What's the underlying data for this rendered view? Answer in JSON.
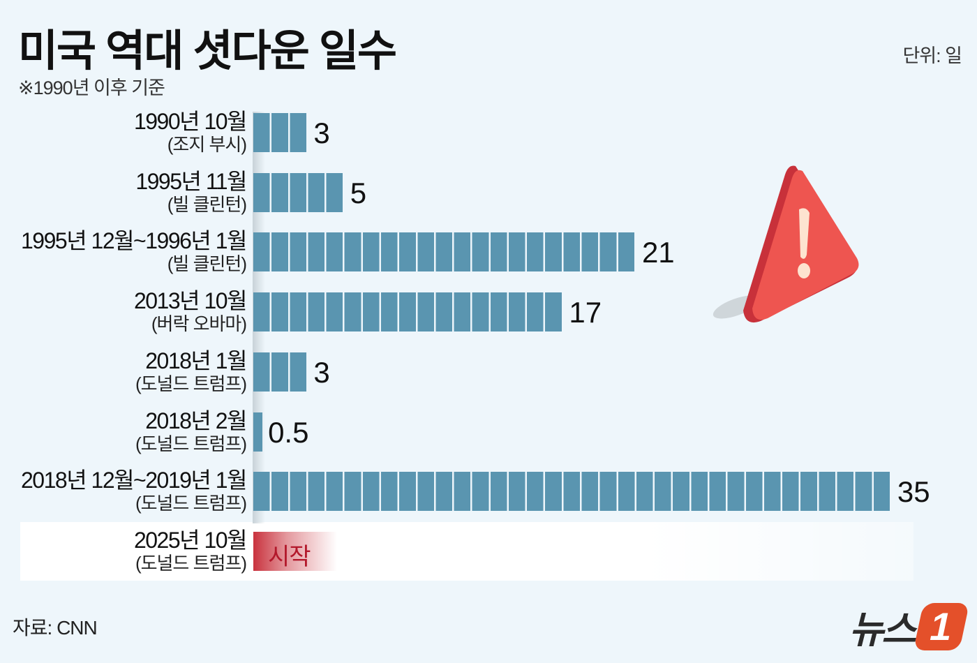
{
  "title": "미국 역대 셧다운 일수",
  "subtitle": "※1990년 이후 기준",
  "unit": "단위: 일",
  "source": "자료: CNN",
  "logo": {
    "text": "뉴스",
    "mark": "1"
  },
  "colors": {
    "bar": "#5a95b0",
    "start": "#c9333e",
    "background": "#eef6fb",
    "warning": "#e84a4a"
  },
  "icons": [
    "warning-triangle-icon"
  ],
  "chart_data": {
    "type": "bar",
    "orientation": "horizontal",
    "title": "미국 역대 셧다운 일수",
    "unit": "일",
    "categories": [
      {
        "date": "1990년 10월",
        "president": "(조지 부시)"
      },
      {
        "date": "1995년 11월",
        "president": "(빌 클린턴)"
      },
      {
        "date": "1995년 12월~1996년 1월",
        "president": "(빌 클린턴)"
      },
      {
        "date": "2013년 10월",
        "president": "(버락 오바마)"
      },
      {
        "date": "2018년 1월",
        "president": "(도널드 트럼프)"
      },
      {
        "date": "2018년 2월",
        "president": "(도널드 트럼프)"
      },
      {
        "date": "2018년 12월~2019년 1월",
        "president": "(도널드 트럼프)"
      }
    ],
    "values": [
      3,
      5,
      21,
      17,
      3,
      0.5,
      35
    ],
    "value_labels": [
      "3",
      "5",
      "21",
      "17",
      "3",
      "0.5",
      "35"
    ],
    "ongoing": {
      "date": "2025년 10월",
      "president": "(도널드 트럼프)",
      "label": "시작"
    },
    "xlim": [
      0,
      35
    ],
    "grid": false,
    "legend": "none"
  }
}
